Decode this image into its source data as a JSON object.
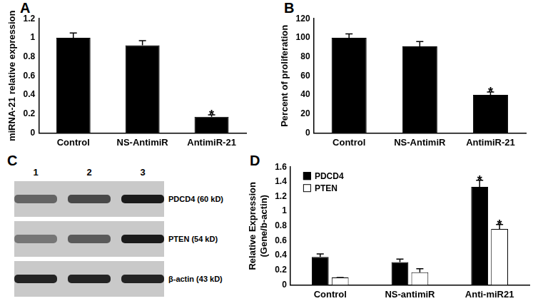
{
  "chart_data": [
    {
      "panel": "A",
      "type": "bar",
      "categories": [
        "Control",
        "NS-AntimiR",
        "AntimiR-21"
      ],
      "values": [
        1.0,
        0.92,
        0.17
      ],
      "errors": [
        0.05,
        0.05,
        0.02
      ],
      "color": "#000000",
      "y_label": "miRNA-21 relative expression",
      "ylim": [
        0,
        1.2
      ],
      "yticks": [
        0,
        0.2,
        0.4,
        0.6,
        0.8,
        1,
        1.2
      ],
      "grid": false,
      "annotations": [
        {
          "text": "*",
          "category": "AntimiR-21"
        }
      ]
    },
    {
      "panel": "B",
      "type": "bar",
      "categories": [
        "Control",
        "NS-AntimiR",
        "AntimiR-21"
      ],
      "values": [
        100,
        91,
        40
      ],
      "errors": [
        4,
        5,
        3
      ],
      "color": "#000000",
      "y_label": "Percent of proliferation",
      "ylim": [
        0,
        120
      ],
      "yticks": [
        0,
        20,
        40,
        60,
        80,
        100,
        120
      ],
      "grid": false,
      "annotations": [
        {
          "text": "*",
          "category": "AntimiR-21"
        }
      ]
    },
    {
      "panel": "D",
      "type": "bar",
      "categories": [
        "Control",
        "NS-antimiR",
        "Anti-miR21"
      ],
      "series": [
        {
          "name": "PDCD4",
          "color": "#000000",
          "values": [
            0.38,
            0.31,
            1.33
          ],
          "errors": [
            0.04,
            0.04,
            0.09
          ]
        },
        {
          "name": "PTEN",
          "color": "#ffffff",
          "values": [
            0.1,
            0.17,
            0.76
          ],
          "errors": [
            0,
            0.05,
            0.06
          ]
        }
      ],
      "y_label": [
        "Relative Expression",
        "(Gene/b-actin)"
      ],
      "ylim": [
        0,
        1.6
      ],
      "yticks": [
        0,
        0.2,
        0.4,
        0.6,
        0.8,
        1,
        1.2,
        1.4,
        1.6
      ],
      "grid": false,
      "legend": "upper left",
      "annotations": [
        {
          "text": "*",
          "category": "Anti-miR21",
          "series": "PDCD4"
        },
        {
          "text": "*",
          "category": "Anti-miR21",
          "series": "PTEN"
        }
      ]
    }
  ],
  "blot": {
    "panel": "C",
    "lanes": [
      "1",
      "2",
      "3"
    ],
    "rows": [
      {
        "label": "PDCD4 (60 kD)",
        "intensities": [
          0.55,
          0.7,
          0.95
        ]
      },
      {
        "label": "PTEN (54 kD)",
        "intensities": [
          0.45,
          0.6,
          0.95
        ]
      },
      {
        "label": "β-actin (43 kD)",
        "intensities": [
          0.9,
          0.9,
          0.9
        ]
      }
    ]
  }
}
